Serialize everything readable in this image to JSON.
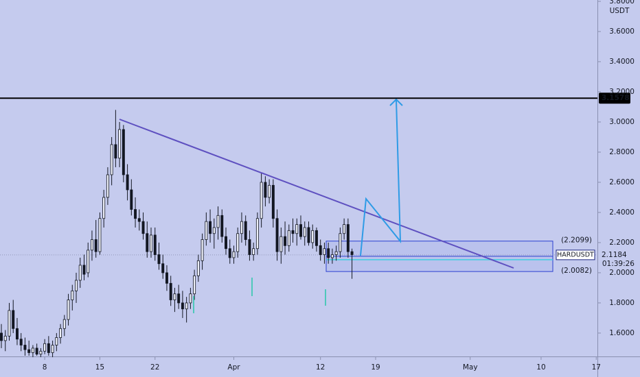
{
  "chart_data": {
    "type": "candlestick",
    "symbol": "HARDUSDT",
    "unit": "USDT",
    "countdown": "01:39:26",
    "up_color": "#eef0f8",
    "down_color": "#131722",
    "open": [
      1.6,
      1.55,
      1.58,
      1.75,
      1.63,
      1.56,
      1.52,
      1.49,
      1.47,
      1.5,
      1.46,
      1.48,
      1.53,
      1.47,
      1.52,
      1.57,
      1.63,
      1.69,
      1.82,
      1.88,
      1.95,
      2.05,
      2.0,
      2.15,
      2.22,
      2.14,
      2.36,
      2.5,
      2.65,
      2.85,
      2.76,
      2.95,
      2.65,
      2.55,
      2.42,
      2.36,
      2.34,
      2.26,
      2.14,
      2.25,
      2.12,
      2.06,
      2.0,
      1.93,
      1.82,
      1.86,
      1.8,
      1.76,
      1.8,
      1.86,
      1.98,
      2.08,
      2.22,
      2.34,
      2.26,
      2.3,
      2.38,
      2.24,
      2.16,
      2.1,
      2.14,
      2.26,
      2.34,
      2.22,
      2.12,
      2.16,
      2.36,
      2.6,
      2.5,
      2.58,
      2.36,
      2.14,
      2.24,
      2.18,
      2.28,
      2.26,
      2.32,
      2.24,
      2.3,
      2.2,
      2.28,
      2.18,
      2.12,
      2.16,
      2.1,
      2.12,
      2.14,
      2.26,
      2.32,
      2.14
    ],
    "high": [
      1.66,
      1.62,
      1.8,
      1.82,
      1.7,
      1.6,
      1.57,
      1.55,
      1.52,
      1.53,
      1.5,
      1.56,
      1.58,
      1.55,
      1.6,
      1.66,
      1.72,
      1.86,
      1.92,
      2.0,
      2.1,
      2.12,
      2.2,
      2.28,
      2.35,
      2.4,
      2.55,
      2.7,
      2.9,
      3.08,
      3.0,
      2.98,
      2.72,
      2.62,
      2.5,
      2.42,
      2.4,
      2.34,
      2.3,
      2.3,
      2.2,
      2.12,
      2.05,
      1.98,
      1.9,
      1.92,
      1.88,
      1.84,
      1.9,
      2.02,
      2.12,
      2.26,
      2.4,
      2.42,
      2.36,
      2.44,
      2.42,
      2.3,
      2.22,
      2.18,
      2.3,
      2.4,
      2.38,
      2.28,
      2.2,
      2.4,
      2.66,
      2.64,
      2.62,
      2.62,
      2.42,
      2.3,
      2.34,
      2.32,
      2.36,
      2.36,
      2.38,
      2.34,
      2.34,
      2.32,
      2.3,
      2.22,
      2.2,
      2.2,
      2.16,
      2.18,
      2.3,
      2.36,
      2.36,
      2.16
    ],
    "low": [
      1.5,
      1.48,
      1.55,
      1.6,
      1.52,
      1.48,
      1.45,
      1.45,
      1.44,
      1.45,
      1.44,
      1.46,
      1.45,
      1.44,
      1.48,
      1.53,
      1.58,
      1.65,
      1.75,
      1.8,
      1.9,
      1.95,
      1.97,
      2.08,
      2.1,
      2.12,
      2.3,
      2.45,
      2.58,
      2.7,
      2.7,
      2.6,
      2.48,
      2.38,
      2.3,
      2.28,
      2.22,
      2.1,
      2.1,
      2.08,
      2.02,
      1.96,
      1.88,
      1.78,
      1.74,
      1.76,
      1.7,
      1.67,
      1.76,
      1.82,
      1.94,
      2.02,
      2.18,
      2.2,
      2.16,
      2.22,
      2.2,
      2.12,
      2.06,
      2.06,
      2.1,
      2.2,
      2.18,
      2.08,
      2.08,
      2.12,
      2.3,
      2.44,
      2.46,
      2.3,
      2.08,
      2.06,
      2.12,
      2.14,
      2.2,
      2.18,
      2.22,
      2.18,
      2.18,
      2.16,
      2.14,
      2.08,
      2.06,
      2.06,
      2.06,
      2.08,
      2.1,
      2.22,
      2.1,
      1.96
    ],
    "close": [
      1.55,
      1.58,
      1.75,
      1.63,
      1.56,
      1.52,
      1.49,
      1.47,
      1.5,
      1.46,
      1.48,
      1.53,
      1.47,
      1.52,
      1.57,
      1.63,
      1.69,
      1.82,
      1.88,
      1.95,
      2.05,
      1.99,
      2.15,
      2.22,
      2.14,
      2.36,
      2.5,
      2.65,
      2.85,
      2.76,
      2.95,
      2.65,
      2.55,
      2.42,
      2.36,
      2.34,
      2.26,
      2.14,
      2.25,
      2.12,
      2.06,
      2.0,
      1.93,
      1.82,
      1.86,
      1.8,
      1.76,
      1.8,
      1.86,
      1.98,
      2.08,
      2.22,
      2.34,
      2.26,
      2.3,
      2.38,
      2.24,
      2.16,
      2.1,
      2.14,
      2.26,
      2.34,
      2.22,
      2.12,
      2.16,
      2.36,
      2.6,
      2.5,
      2.58,
      2.36,
      2.14,
      2.24,
      2.18,
      2.28,
      2.26,
      2.32,
      2.24,
      2.3,
      2.2,
      2.28,
      2.18,
      2.12,
      2.16,
      2.1,
      2.12,
      2.14,
      2.26,
      2.32,
      2.14,
      2.12
    ],
    "xlim": [
      -0.35,
      151.3
    ],
    "xticks": [
      {
        "value": 11,
        "label": "8"
      },
      {
        "value": 25,
        "label": "15"
      },
      {
        "value": 39,
        "label": "22"
      },
      {
        "value": 59,
        "label": "Apr"
      },
      {
        "value": 81,
        "label": "12"
      },
      {
        "value": 95,
        "label": "19"
      },
      {
        "value": 119,
        "label": "May"
      },
      {
        "value": 137,
        "label": "10"
      },
      {
        "value": 151,
        "label": "17"
      }
    ],
    "ylim": [
      1.445,
      3.809
    ],
    "yticks": [
      {
        "value": 1.6,
        "label": "1.6000"
      },
      {
        "value": 1.8,
        "label": "1.8000"
      },
      {
        "value": 2.0,
        "label": "2.0000"
      },
      {
        "value": 2.2,
        "label": "2.2000"
      },
      {
        "value": 2.4,
        "label": "2.4000"
      },
      {
        "value": 2.6,
        "label": "2.6000"
      },
      {
        "value": 2.8,
        "label": "2.8000"
      },
      {
        "value": 3.0,
        "label": "3.0000"
      },
      {
        "value": 3.2,
        "label": "3.2000"
      },
      {
        "value": 3.4,
        "label": "3.4000"
      },
      {
        "value": 3.6,
        "label": "3.6000"
      },
      {
        "value": 3.8,
        "label": "3.8000"
      }
    ],
    "level": 3.1578,
    "last_price": 2.1184,
    "box_top": {
      "value": 2.2099,
      "label": "(2.2099)"
    },
    "box_bottom": {
      "value": 2.0082,
      "label": "(2.0082)"
    }
  }
}
